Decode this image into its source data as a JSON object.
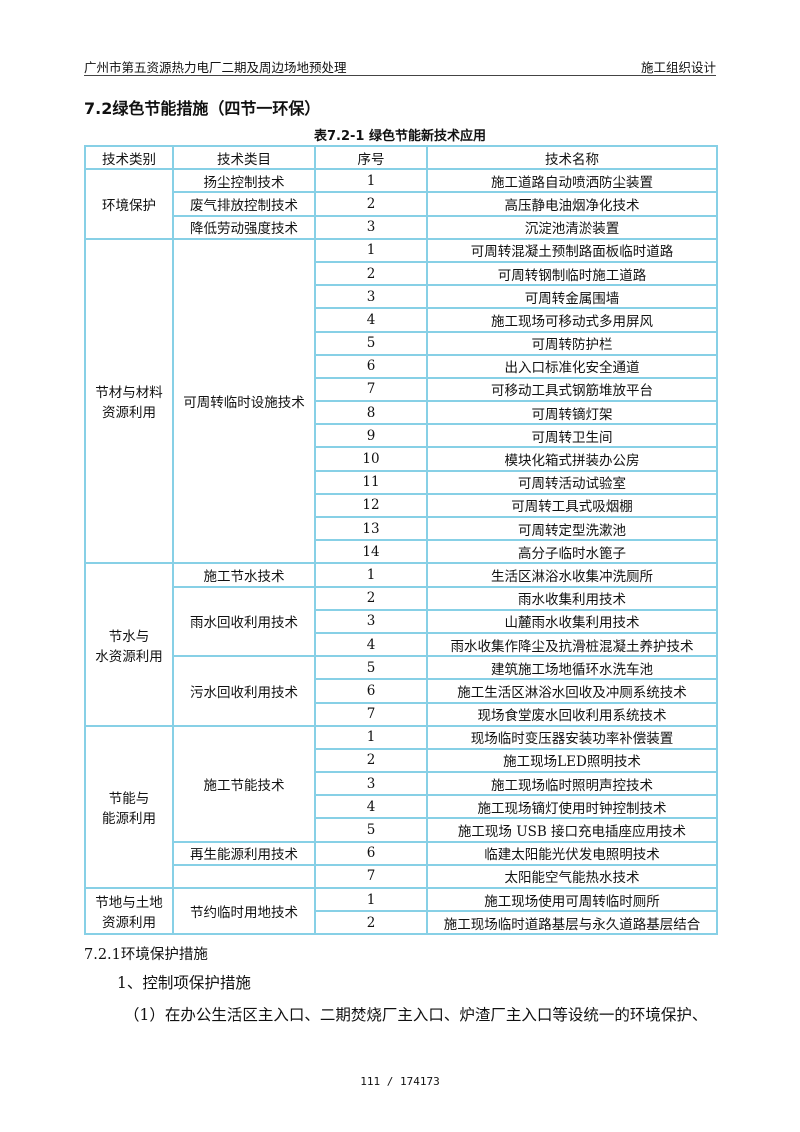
{
  "header": {
    "left": "广州市第五资源热力电厂二期及周边场地预处理",
    "right": "施工组织设计"
  },
  "section_title": "7.2绿色节能措施（四节一环保）",
  "table_caption": "表7.2-1   绿色节能新技术应用",
  "table": {
    "headers": [
      "技术类别",
      "技术类目",
      "序号",
      "技术名称"
    ],
    "groups": {
      "env": "环境保护",
      "material": "节材与材料\n资源利用",
      "water": "节水与\n水资源利用",
      "energy": "节能与\n能源利用",
      "land": "节地与土地\n资源利用"
    },
    "subcats": {
      "dust": "扬尘控制技术",
      "exhaust": "废气排放控制技术",
      "labor": "降低劳动强度技术",
      "temp": "可周转临时设施技术",
      "watersave": "施工节水技术",
      "rain": "雨水回收利用技术",
      "sewage": "污水回收利用技术",
      "energysave": "施工节能技术",
      "renew": "再生能源利用技术",
      "landsave": "节约临时用地技术"
    },
    "rows": [
      {
        "no": "1",
        "name": "施工道路自动喷洒防尘装置"
      },
      {
        "no": "2",
        "name": "高压静电油烟净化技术"
      },
      {
        "no": "3",
        "name": "沉淀池清淤装置"
      },
      {
        "no": "1",
        "name": "可周转混凝土预制路面板临时道路"
      },
      {
        "no": "2",
        "name": "可周转钢制临时施工道路"
      },
      {
        "no": "3",
        "name": "可周转金属围墙"
      },
      {
        "no": "4",
        "name": "施工现场可移动式多用屏风"
      },
      {
        "no": "5",
        "name": "可周转防护栏"
      },
      {
        "no": "6",
        "name": "出入口标准化安全通道"
      },
      {
        "no": "7",
        "name": "可移动工具式钢筋堆放平台"
      },
      {
        "no": "8",
        "name": "可周转镝灯架"
      },
      {
        "no": "9",
        "name": "可周转卫生间"
      },
      {
        "no": "10",
        "name": "模块化箱式拼装办公房"
      },
      {
        "no": "11",
        "name": "可周转活动试验室"
      },
      {
        "no": "12",
        "name": "可周转工具式吸烟棚"
      },
      {
        "no": "13",
        "name": "可周转定型洗漱池"
      },
      {
        "no": "14",
        "name": "高分子临时水篦子"
      },
      {
        "no": "1",
        "name": "生活区淋浴水收集冲洗厕所"
      },
      {
        "no": "2",
        "name": "雨水收集利用技术"
      },
      {
        "no": "3",
        "name": "山麓雨水收集利用技术"
      },
      {
        "no": "4",
        "name": "雨水收集作降尘及抗滑桩混凝土养护技术"
      },
      {
        "no": "5",
        "name": "建筑施工场地循环水洗车池"
      },
      {
        "no": "6",
        "name": "施工生活区淋浴水回收及冲厕系统技术"
      },
      {
        "no": "7",
        "name": "现场食堂废水回收利用系统技术"
      },
      {
        "no": "1",
        "name": "现场临时变压器安装功率补偿装置"
      },
      {
        "no": "2",
        "name": "施工现场LED照明技术"
      },
      {
        "no": "3",
        "name": "施工现场临时照明声控技术"
      },
      {
        "no": "4",
        "name": "施工现场镝灯使用时钟控制技术"
      },
      {
        "no": "5",
        "name": "施工现场 USB 接口充电插座应用技术"
      },
      {
        "no": "6",
        "name": "临建太阳能光伏发电照明技术"
      },
      {
        "no": "7",
        "name": "太阳能空气能热水技术"
      },
      {
        "no": "1",
        "name": "施工现场使用可周转临时厕所"
      },
      {
        "no": "2",
        "name": "施工现场临时道路基层与永久道路基层结合"
      }
    ]
  },
  "subsection_title": "7.2.1环境保护措施",
  "item_heading": "1、控制项保护措施",
  "paragraph": "（1）在办公生活区主入口、二期焚烧厂主入口、炉渣厂主入口等设统一的环境保护、",
  "footer": "111 / 174173"
}
